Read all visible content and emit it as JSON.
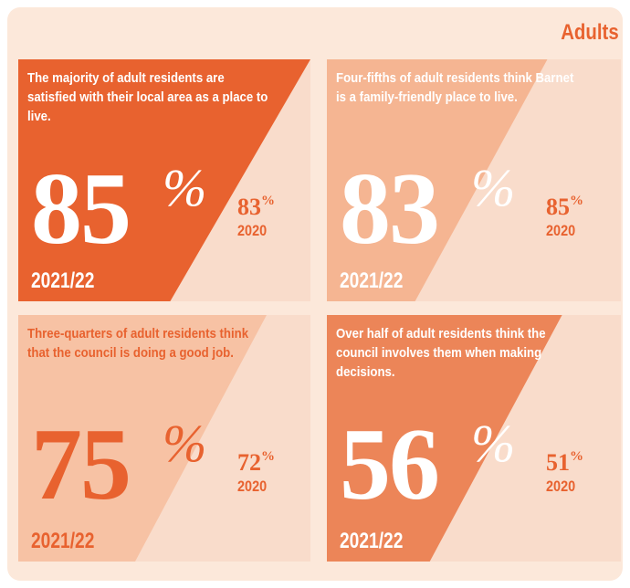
{
  "title": "Adults",
  "cards": [
    {
      "text": "The majority of adult residents are satisfied with their local area as a place to live.",
      "value": "85",
      "unit": "%",
      "period": "2021/22",
      "previous_value": "83",
      "previous_unit": "%",
      "previous_period": "2020"
    },
    {
      "text": "Four-fifths of adult residents think Barnet is a family-friendly place to live.",
      "value": "83",
      "unit": "%",
      "period": "2021/22",
      "previous_value": "85",
      "previous_unit": "%",
      "previous_period": "2020"
    },
    {
      "text": "Three-quarters of adult residents think that the council is doing a good job.",
      "value": "75",
      "unit": "%",
      "period": "2021/22",
      "previous_value": "72",
      "previous_unit": "%",
      "previous_period": "2020"
    },
    {
      "text": "Over half of adult residents think the council involves them when making decisions.",
      "value": "56",
      "unit": "%",
      "period": "2021/22",
      "previous_value": "51",
      "previous_unit": "%",
      "previous_period": "2020"
    }
  ]
}
